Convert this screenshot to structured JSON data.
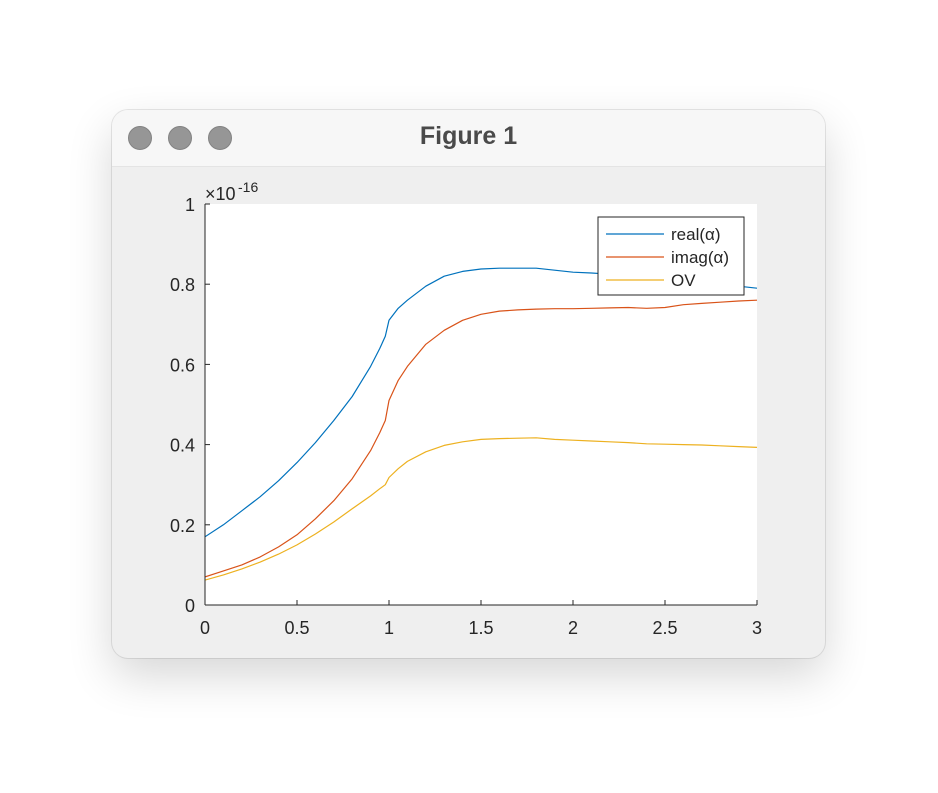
{
  "window": {
    "title": "Figure 1",
    "buttons": [
      {
        "name": "close"
      },
      {
        "name": "minimize"
      },
      {
        "name": "zoom"
      }
    ]
  },
  "chart_data": {
    "type": "line",
    "title": "",
    "xlabel": "",
    "ylabel": "",
    "xlim": [
      0,
      3
    ],
    "ylim": [
      0,
      1
    ],
    "y_exponent_label": "×10",
    "y_exponent": "-16",
    "xticks": [
      "0",
      "0.5",
      "1",
      "1.5",
      "2",
      "2.5",
      "3"
    ],
    "yticks": [
      "0",
      "0.2",
      "0.4",
      "0.6",
      "0.8",
      "1"
    ],
    "grid": false,
    "legend_position": "top-right",
    "x": [
      0,
      0.1,
      0.2,
      0.3,
      0.4,
      0.5,
      0.6,
      0.7,
      0.8,
      0.9,
      0.95,
      0.98,
      1.0,
      1.05,
      1.1,
      1.2,
      1.3,
      1.4,
      1.5,
      1.6,
      1.7,
      1.8,
      1.9,
      2.0,
      2.1,
      2.2,
      2.3,
      2.4,
      2.5,
      2.6,
      2.7,
      2.8,
      2.9,
      3.0
    ],
    "series": [
      {
        "name": "real(α)",
        "color": "#0072BD",
        "values": [
          0.17,
          0.2,
          0.235,
          0.27,
          0.31,
          0.355,
          0.405,
          0.46,
          0.52,
          0.595,
          0.64,
          0.67,
          0.71,
          0.74,
          0.76,
          0.795,
          0.82,
          0.832,
          0.838,
          0.84,
          0.84,
          0.84,
          0.835,
          0.83,
          0.828,
          0.825,
          0.823,
          0.818,
          0.81,
          0.805,
          0.8,
          0.797,
          0.795,
          0.79
        ]
      },
      {
        "name": "imag(α)",
        "color": "#D95319",
        "values": [
          0.07,
          0.085,
          0.1,
          0.12,
          0.145,
          0.175,
          0.215,
          0.26,
          0.315,
          0.385,
          0.43,
          0.46,
          0.51,
          0.56,
          0.595,
          0.65,
          0.685,
          0.71,
          0.725,
          0.733,
          0.736,
          0.738,
          0.739,
          0.739,
          0.74,
          0.741,
          0.742,
          0.74,
          0.742,
          0.749,
          0.752,
          0.755,
          0.758,
          0.76
        ]
      },
      {
        "name": "OV",
        "color": "#EDB120",
        "values": [
          0.062,
          0.075,
          0.09,
          0.107,
          0.127,
          0.15,
          0.177,
          0.207,
          0.24,
          0.272,
          0.29,
          0.3,
          0.318,
          0.34,
          0.358,
          0.382,
          0.398,
          0.407,
          0.413,
          0.415,
          0.416,
          0.417,
          0.413,
          0.411,
          0.409,
          0.407,
          0.405,
          0.402,
          0.401,
          0.4,
          0.399,
          0.397,
          0.395,
          0.393
        ]
      }
    ]
  }
}
